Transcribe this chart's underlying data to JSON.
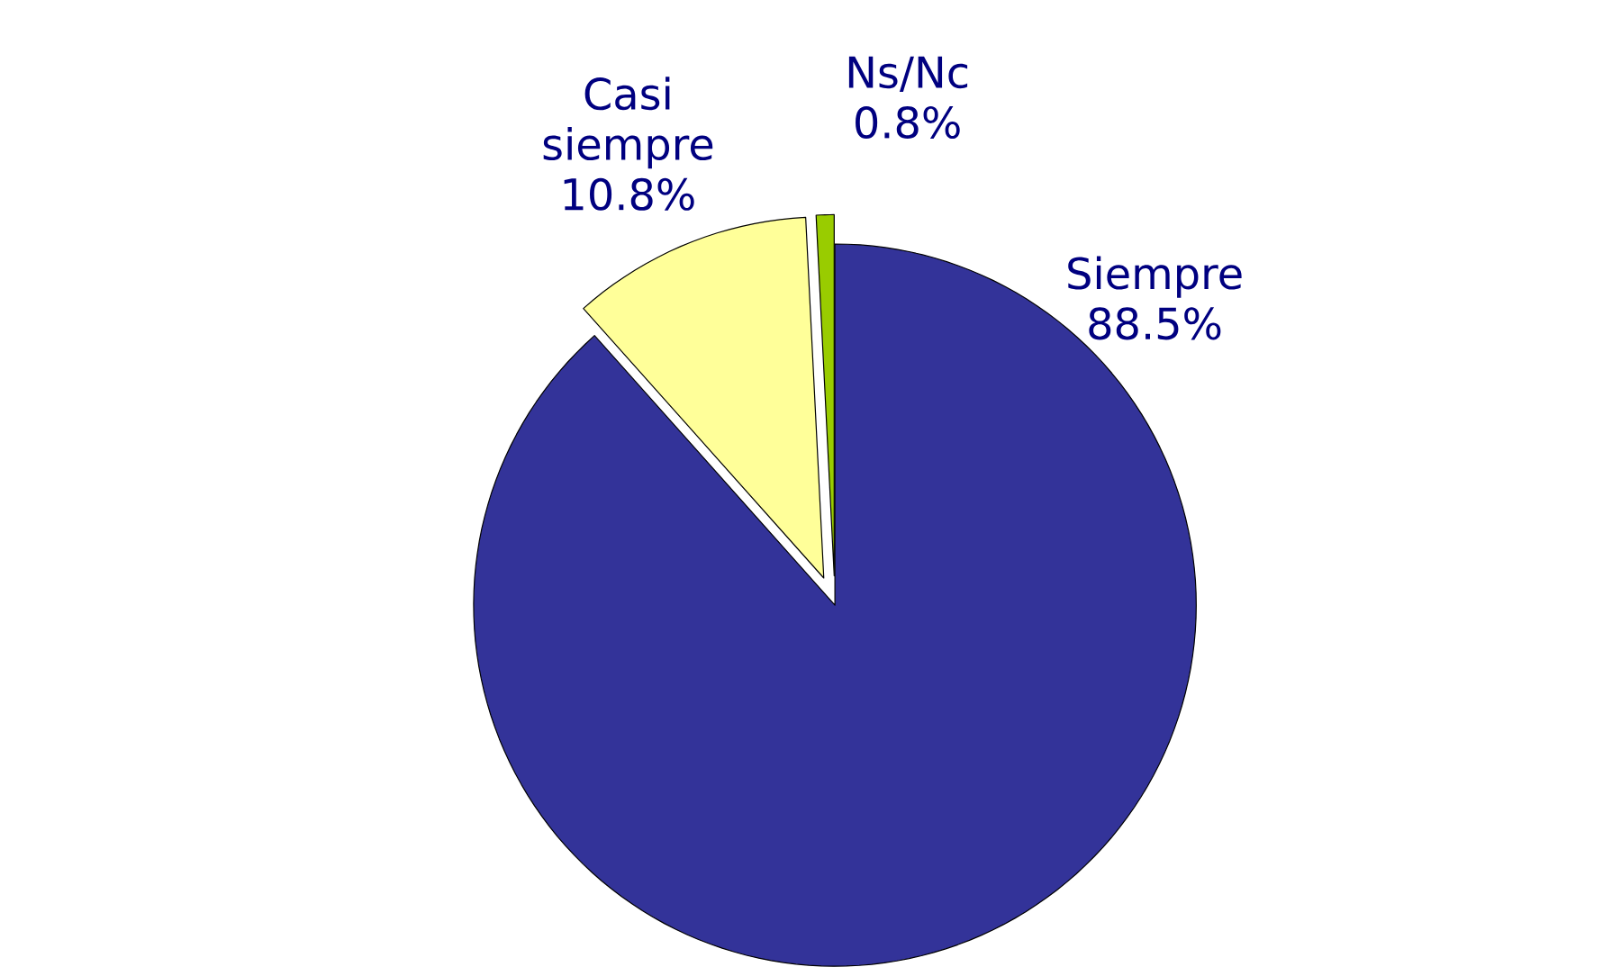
{
  "chart_data": {
    "type": "pie",
    "categories": [
      "Siempre",
      "Casi siempre",
      "Ns/Nc"
    ],
    "values": [
      88.5,
      10.8,
      0.8
    ],
    "colors": [
      "#333399",
      "#ffff99",
      "#99cc00"
    ],
    "value_labels": [
      "88.5%",
      "10.8%",
      "0.8%"
    ]
  }
}
